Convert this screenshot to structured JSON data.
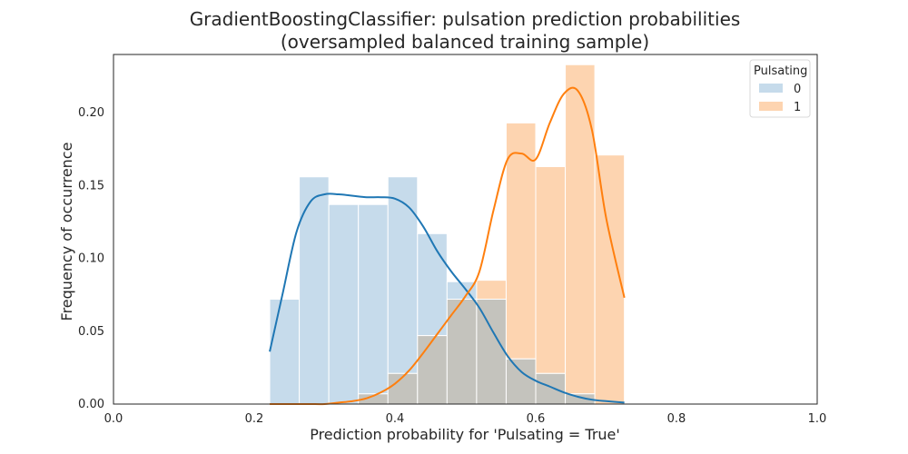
{
  "chart_data": {
    "type": "histogram",
    "title_line1": "GradientBoostingClassifier: pulsation prediction probabilities",
    "title_line2": "(oversampled balanced training sample)",
    "xlabel": "Prediction probability for 'Pulsating = True'",
    "ylabel": "Frequency of occurrence",
    "xlim": [
      0.0,
      1.0
    ],
    "ylim": [
      0.0,
      0.24
    ],
    "xticks": [
      0.0,
      0.2,
      0.4,
      0.6,
      0.8,
      1.0
    ],
    "xtick_labels": [
      "0.0",
      "0.2",
      "0.4",
      "0.6",
      "0.8",
      "1.0"
    ],
    "yticks": [
      0.0,
      0.05,
      0.1,
      0.15,
      0.2
    ],
    "ytick_labels": [
      "0.00",
      "0.05",
      "0.10",
      "0.15",
      "0.20"
    ],
    "grid": false,
    "legend": {
      "title": "Pulsating",
      "placement": "top-right"
    },
    "bin_edges": [
      0.2225,
      0.2435,
      0.2645,
      0.2855,
      0.3065,
      0.3275,
      0.3485,
      0.3695,
      0.3905,
      0.4115,
      0.4325,
      0.4535,
      0.4745,
      0.4955,
      0.5165,
      0.5375,
      0.5585,
      0.5795,
      0.6005,
      0.6215,
      0.6425,
      0.6635,
      0.6845,
      0.7055,
      0.7265
    ],
    "series": [
      {
        "name": "0",
        "bar_color": "#c6dbeb",
        "line_color": "#1f77b4",
        "bin_starts": [
          0.222,
          0.264,
          0.306,
          0.348,
          0.39,
          0.432,
          0.474,
          0.516,
          0.558,
          0.6,
          0.642,
          0.684
        ],
        "bin_width": 0.042,
        "values": [
          0.072,
          0.156,
          0.137,
          0.137,
          0.156,
          0.117,
          0.084,
          0.072,
          0.031,
          0.021,
          0.007,
          0.0
        ],
        "kde_x": [
          0.222,
          0.24,
          0.26,
          0.28,
          0.3,
          0.32,
          0.34,
          0.36,
          0.38,
          0.4,
          0.42,
          0.44,
          0.46,
          0.48,
          0.5,
          0.52,
          0.54,
          0.56,
          0.58,
          0.6,
          0.62,
          0.64,
          0.66,
          0.68,
          0.7,
          0.726
        ],
        "kde_y": [
          0.036,
          0.075,
          0.118,
          0.139,
          0.144,
          0.144,
          0.143,
          0.142,
          0.142,
          0.141,
          0.135,
          0.122,
          0.105,
          0.091,
          0.079,
          0.066,
          0.049,
          0.033,
          0.022,
          0.016,
          0.012,
          0.008,
          0.005,
          0.003,
          0.002,
          0.001
        ]
      },
      {
        "name": "1",
        "bar_color": "#fdd4b0",
        "line_color": "#ff7f0e",
        "bin_starts": [
          0.222,
          0.264,
          0.306,
          0.348,
          0.39,
          0.432,
          0.474,
          0.516,
          0.558,
          0.6,
          0.642,
          0.684
        ],
        "bin_width": 0.042,
        "values": [
          0.0,
          0.0,
          0.0,
          0.007,
          0.021,
          0.047,
          0.072,
          0.085,
          0.193,
          0.163,
          0.233,
          0.171
        ],
        "kde_x": [
          0.222,
          0.24,
          0.26,
          0.28,
          0.3,
          0.32,
          0.34,
          0.36,
          0.38,
          0.4,
          0.42,
          0.44,
          0.46,
          0.48,
          0.5,
          0.52,
          0.54,
          0.56,
          0.58,
          0.6,
          0.62,
          0.64,
          0.66,
          0.68,
          0.7,
          0.726
        ],
        "kde_y": [
          0.0,
          0.0,
          0.0,
          0.0,
          0.0,
          0.001,
          0.002,
          0.004,
          0.008,
          0.014,
          0.023,
          0.035,
          0.048,
          0.061,
          0.074,
          0.091,
          0.133,
          0.168,
          0.172,
          0.168,
          0.193,
          0.213,
          0.215,
          0.188,
          0.128,
          0.073
        ]
      }
    ],
    "overlap_color": "#c4c3bd"
  }
}
